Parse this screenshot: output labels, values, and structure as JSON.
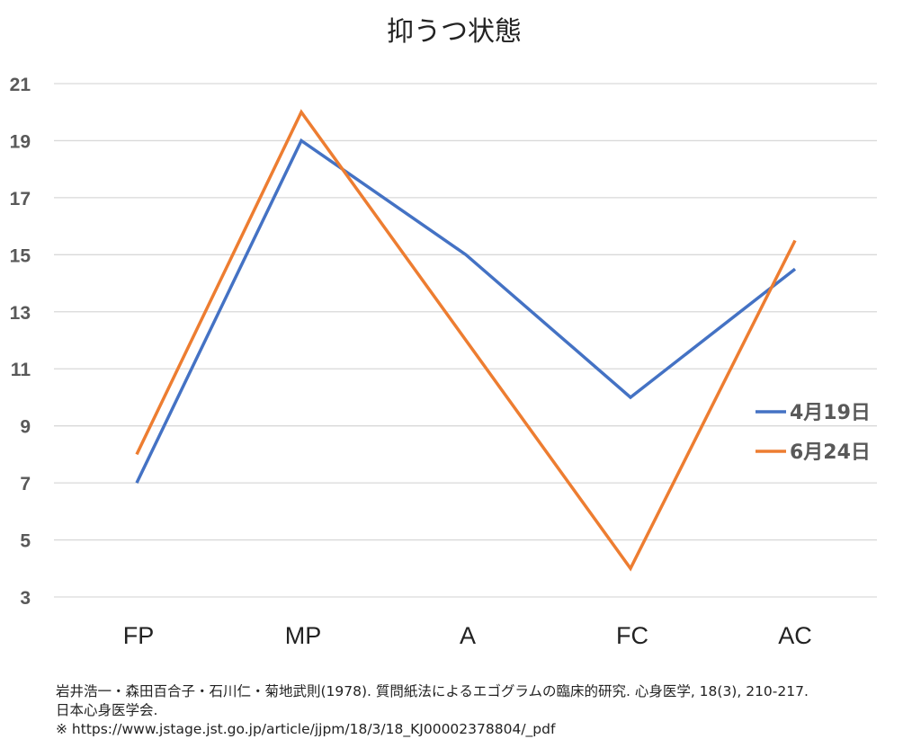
{
  "chart_data": {
    "type": "line",
    "title": "抑うつ状態",
    "categories": [
      "FP",
      "MP",
      "A",
      "FC",
      "AC"
    ],
    "series": [
      {
        "name": "4月19日",
        "color": "#4472C4",
        "values": [
          7,
          19,
          15,
          10,
          14.5
        ]
      },
      {
        "name": "6月24日",
        "color": "#ED7D31",
        "values": [
          8,
          20,
          12,
          4,
          15.5
        ]
      }
    ],
    "y_ticks": [
      "3",
      "5",
      "7",
      "9",
      "11",
      "13",
      "15",
      "17",
      "19",
      "21"
    ],
    "ylim": [
      3,
      21
    ],
    "grid": "horizontal",
    "legend": "right"
  },
  "source": {
    "citation_line1": "岩井浩一・森田百合子・石川仁・菊地武則(1978). 質問紙法によるエゴグラムの臨床的研究. 心身医学, 18(3), 210-217.",
    "citation_line2": "日本心身医学会.",
    "url_line": "※ https://www.jstage.jst.go.jp/article/jjpm/18/3/18_KJ00002378804/_pdf"
  }
}
